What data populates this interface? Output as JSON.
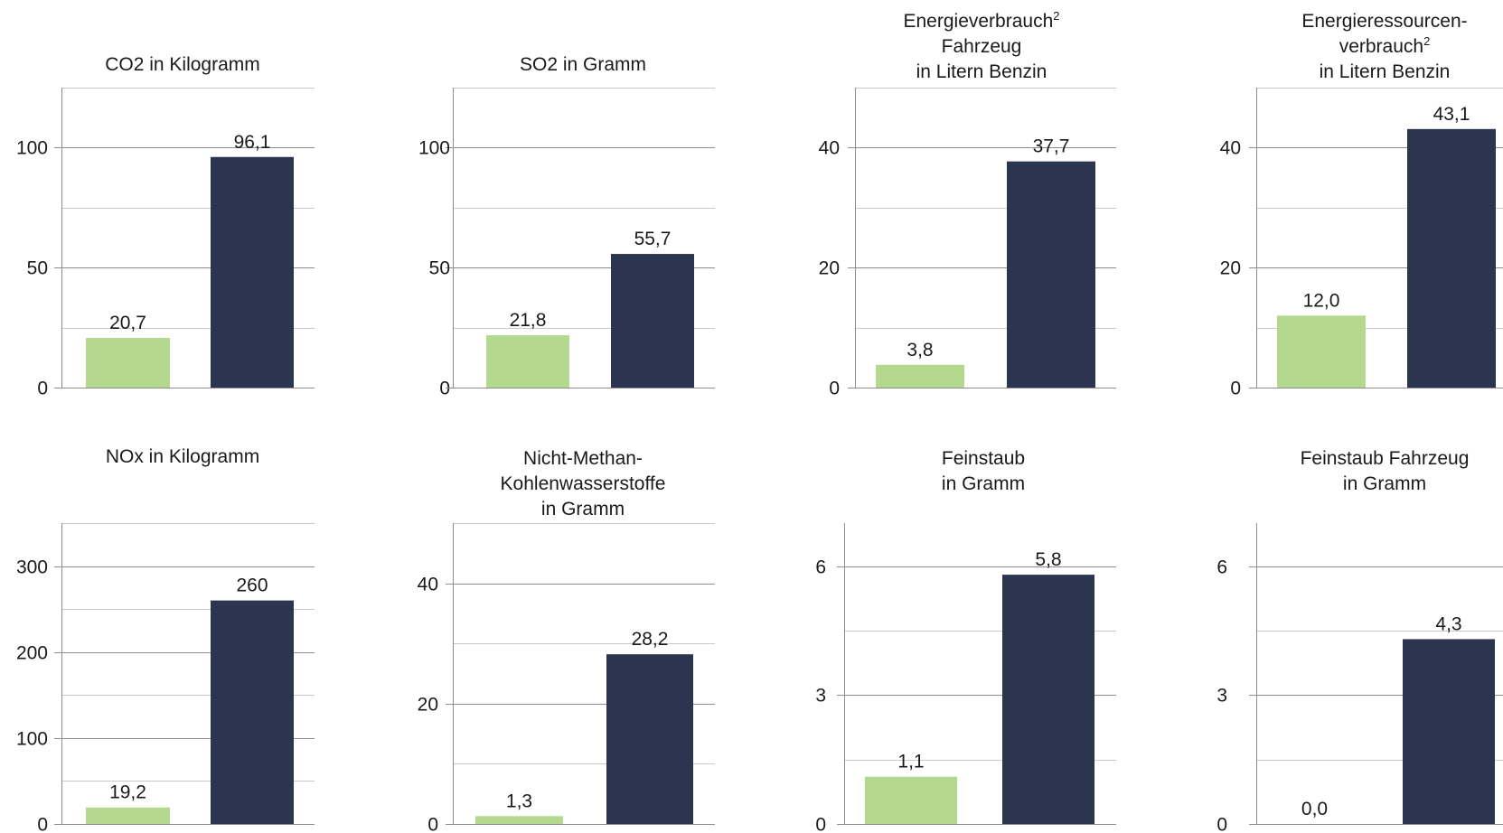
{
  "colors": {
    "green": "#b5d88f",
    "navy": "#2c3550"
  },
  "chart_data": [
    {
      "type": "bar",
      "title_lines": [
        "CO2 in Kilogramm"
      ],
      "values": [
        20.7,
        96.1
      ],
      "data_labels": [
        "20,7",
        "96,1"
      ],
      "ylim": [
        0,
        125
      ],
      "major_ticks": [
        0,
        50,
        100
      ],
      "tick_labels": [
        "0",
        "50",
        "100"
      ],
      "minor_step": 25,
      "grid": true
    },
    {
      "type": "bar",
      "title_lines": [
        "SO2 in Gramm"
      ],
      "values": [
        21.8,
        55.7
      ],
      "data_labels": [
        "21,8",
        "55,7"
      ],
      "ylim": [
        0,
        125
      ],
      "major_ticks": [
        0,
        50,
        100
      ],
      "tick_labels": [
        "0",
        "50",
        "100"
      ],
      "minor_step": 25,
      "grid": true
    },
    {
      "type": "bar",
      "title_lines": [
        "Energieverbrauch",
        "Fahrzeug",
        "in Litern Benzin"
      ],
      "title_sup": "2",
      "values": [
        3.8,
        37.7
      ],
      "data_labels": [
        "3,8",
        "37,7"
      ],
      "ylim": [
        0,
        50
      ],
      "major_ticks": [
        0,
        20,
        40
      ],
      "tick_labels": [
        "0",
        "20",
        "40"
      ],
      "minor_step": 10,
      "grid": true
    },
    {
      "type": "bar",
      "title_lines": [
        "Energieressourcen-",
        "verbrauch",
        "in Litern Benzin"
      ],
      "title_sup": "2",
      "values": [
        12.0,
        43.1
      ],
      "data_labels": [
        "12,0",
        "43,1"
      ],
      "ylim": [
        0,
        50
      ],
      "major_ticks": [
        0,
        20,
        40
      ],
      "tick_labels": [
        "0",
        "20",
        "40"
      ],
      "minor_step": 10,
      "grid": true
    },
    {
      "type": "bar",
      "title_lines": [
        "NOx in Kilogramm"
      ],
      "values": [
        19.2,
        260
      ],
      "data_labels": [
        "19,2",
        "260"
      ],
      "ylim": [
        0,
        350
      ],
      "major_ticks": [
        0,
        100,
        200,
        300
      ],
      "tick_labels": [
        "0",
        "100",
        "200",
        "300"
      ],
      "minor_step": 50,
      "grid": true
    },
    {
      "type": "bar",
      "title_lines": [
        "Nicht-Methan-",
        "Kohlenwasserstoffe",
        "in Gramm"
      ],
      "values": [
        1.3,
        28.2
      ],
      "data_labels": [
        "1,3",
        "28,2"
      ],
      "ylim": [
        0,
        50
      ],
      "major_ticks": [
        0,
        20,
        40
      ],
      "tick_labels": [
        "0",
        "20",
        "40"
      ],
      "minor_step": 10,
      "grid": true
    },
    {
      "type": "bar",
      "title_lines": [
        "Feinstaub",
        "in Gramm"
      ],
      "values": [
        1.1,
        5.8
      ],
      "data_labels": [
        "1,1",
        "5,8"
      ],
      "ylim": [
        0,
        7
      ],
      "major_ticks": [
        0,
        3,
        6
      ],
      "tick_labels": [
        "0",
        "3",
        "6"
      ],
      "minor_step": 1.5,
      "grid": true
    },
    {
      "type": "bar",
      "title_lines": [
        "Feinstaub Fahrzeug",
        "in Gramm"
      ],
      "values": [
        0.0,
        4.3
      ],
      "data_labels": [
        "0,0",
        "4,3"
      ],
      "ylim": [
        0,
        7
      ],
      "major_ticks": [
        0,
        3,
        6
      ],
      "tick_labels": [
        "0",
        "3",
        "6"
      ],
      "minor_step": 1.5,
      "grid": true
    }
  ]
}
